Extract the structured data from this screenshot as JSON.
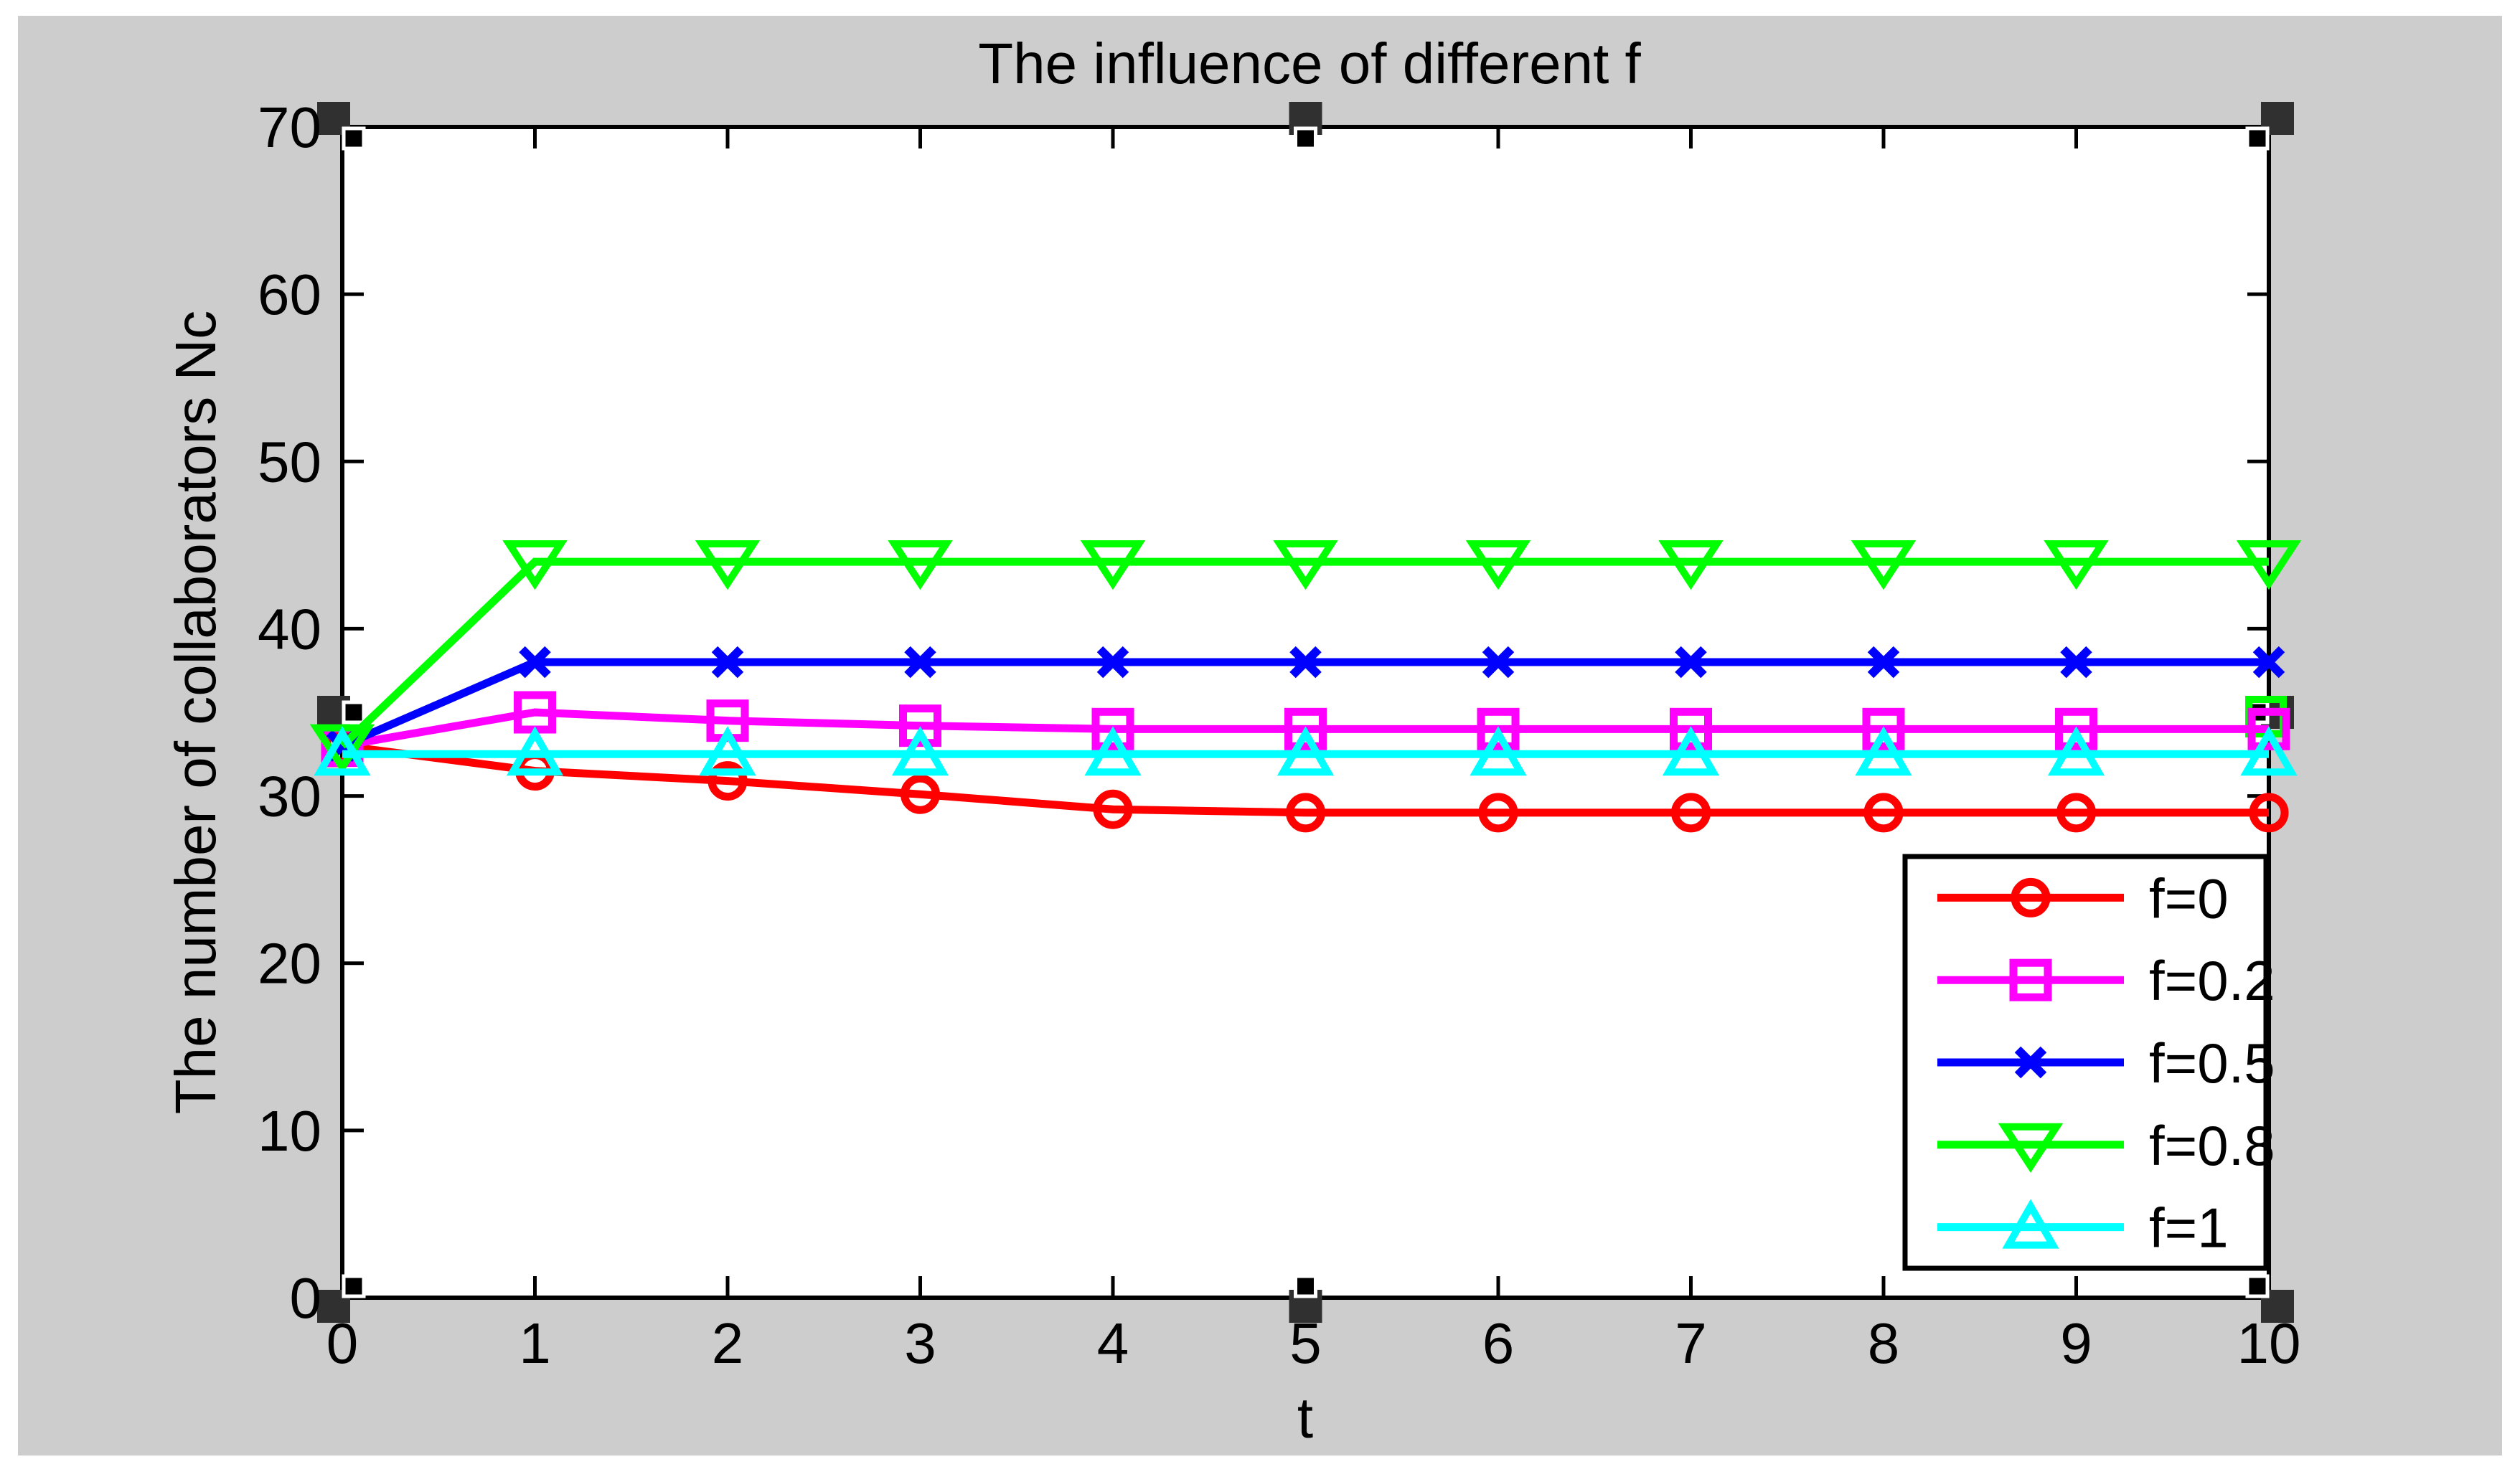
{
  "window": {
    "page_background": "#ffffff",
    "figure_background": "#cdcdcd",
    "plot_background": "#ffffff",
    "axis_color": "#000000"
  },
  "chart_data": {
    "type": "line",
    "title": "The influence of different f",
    "xlabel": "t",
    "ylabel": "The number of collaborators Nc",
    "xlim": [
      0,
      10
    ],
    "ylim": [
      0,
      70
    ],
    "xticks": [
      0,
      1,
      2,
      3,
      4,
      5,
      6,
      7,
      8,
      9,
      10
    ],
    "yticks": [
      0,
      10,
      20,
      30,
      40,
      50,
      60,
      70
    ],
    "grid": false,
    "legend_position": "lower-right-inside",
    "x": [
      0,
      1,
      2,
      3,
      4,
      5,
      6,
      7,
      8,
      9,
      10
    ],
    "series": [
      {
        "name": "f=0",
        "color": "#ff0000",
        "marker": "circle",
        "values": [
          33,
          31.5,
          30.9,
          30.1,
          29.2,
          29,
          29,
          29,
          29,
          29,
          29
        ]
      },
      {
        "name": "f=0.2",
        "color": "#ff00ff",
        "marker": "square",
        "values": [
          33,
          35,
          34.5,
          34.2,
          34,
          34,
          34,
          34,
          34,
          34,
          34
        ]
      },
      {
        "name": "f=0.5",
        "color": "#0000ff",
        "marker": "x",
        "values": [
          33,
          38,
          38,
          38,
          38,
          38,
          38,
          38,
          38,
          38,
          38
        ]
      },
      {
        "name": "f=0.8",
        "color": "#00ff00",
        "marker": "triangle-down",
        "values": [
          33,
          44,
          44,
          44,
          44,
          44,
          44,
          44,
          44,
          44,
          44
        ]
      },
      {
        "name": "f=1",
        "color": "#00ffff",
        "marker": "triangle-up",
        "values": [
          32.5,
          32.5,
          32.5,
          32.5,
          32.5,
          32.5,
          32.5,
          32.5,
          32.5,
          32.5,
          32.5
        ]
      }
    ]
  },
  "edit_mode": {
    "handles_visible": true,
    "handle_outer_color": "#303030",
    "handle_inner_color": "#000000",
    "stray_marker": {
      "shape": "square",
      "color": "#00ff00"
    }
  }
}
